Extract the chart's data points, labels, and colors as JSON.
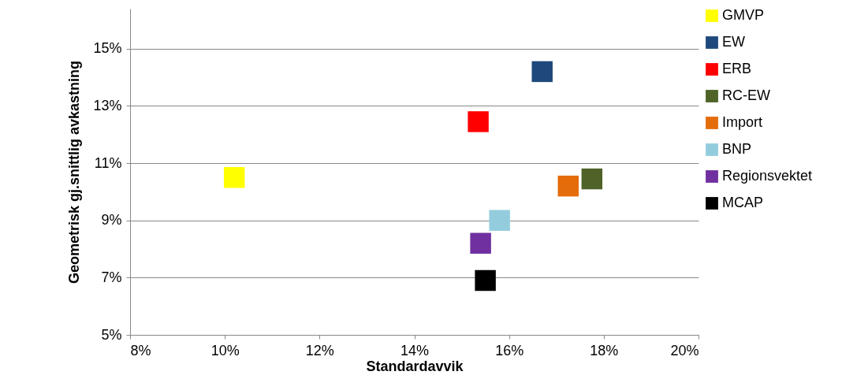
{
  "chart_data": {
    "type": "scatter",
    "xlabel": "Standardavvik",
    "ylabel": "Geometrisk gj.snittlig avkastning",
    "xlim": [
      8,
      20
    ],
    "xticks": [
      {
        "value": 8,
        "label": "8%"
      },
      {
        "value": 10,
        "label": "10%"
      },
      {
        "value": 12,
        "label": "12%"
      },
      {
        "value": 14,
        "label": "14%"
      },
      {
        "value": 16,
        "label": "16%"
      },
      {
        "value": 18,
        "label": "18%"
      },
      {
        "value": 20,
        "label": "20%"
      }
    ],
    "ylim": [
      5,
      16.4
    ],
    "yticks": [
      {
        "value": 5,
        "label": "5%"
      },
      {
        "value": 7,
        "label": "7%"
      },
      {
        "value": 9,
        "label": "9%"
      },
      {
        "value": 11,
        "label": "11%"
      },
      {
        "value": 13,
        "label": "13%"
      },
      {
        "value": 15,
        "label": "15%"
      }
    ],
    "grid": "y",
    "legend": "right",
    "marker": "square",
    "series": [
      {
        "name": "GMVP",
        "color": "#ffff00",
        "x": [
          10.2
        ],
        "values": [
          10.5
        ]
      },
      {
        "name": "EW",
        "color": "#1f497d",
        "x": [
          16.7
        ],
        "values": [
          14.2
        ]
      },
      {
        "name": "ERB",
        "color": "#ff0000",
        "x": [
          15.35
        ],
        "values": [
          12.45
        ]
      },
      {
        "name": "RC-EW",
        "color": "#4f6228",
        "x": [
          17.75
        ],
        "values": [
          10.45
        ]
      },
      {
        "name": "Import",
        "color": "#e46c0a",
        "x": [
          17.25
        ],
        "values": [
          10.2
        ]
      },
      {
        "name": "BNP",
        "color": "#93cddd",
        "x": [
          15.8
        ],
        "values": [
          9.0
        ]
      },
      {
        "name": "Regionsvektet",
        "color": "#7030a0",
        "x": [
          15.4
        ],
        "values": [
          8.2
        ]
      },
      {
        "name": "MCAP",
        "color": "#000000",
        "x": [
          15.5
        ],
        "values": [
          6.9
        ]
      }
    ]
  }
}
